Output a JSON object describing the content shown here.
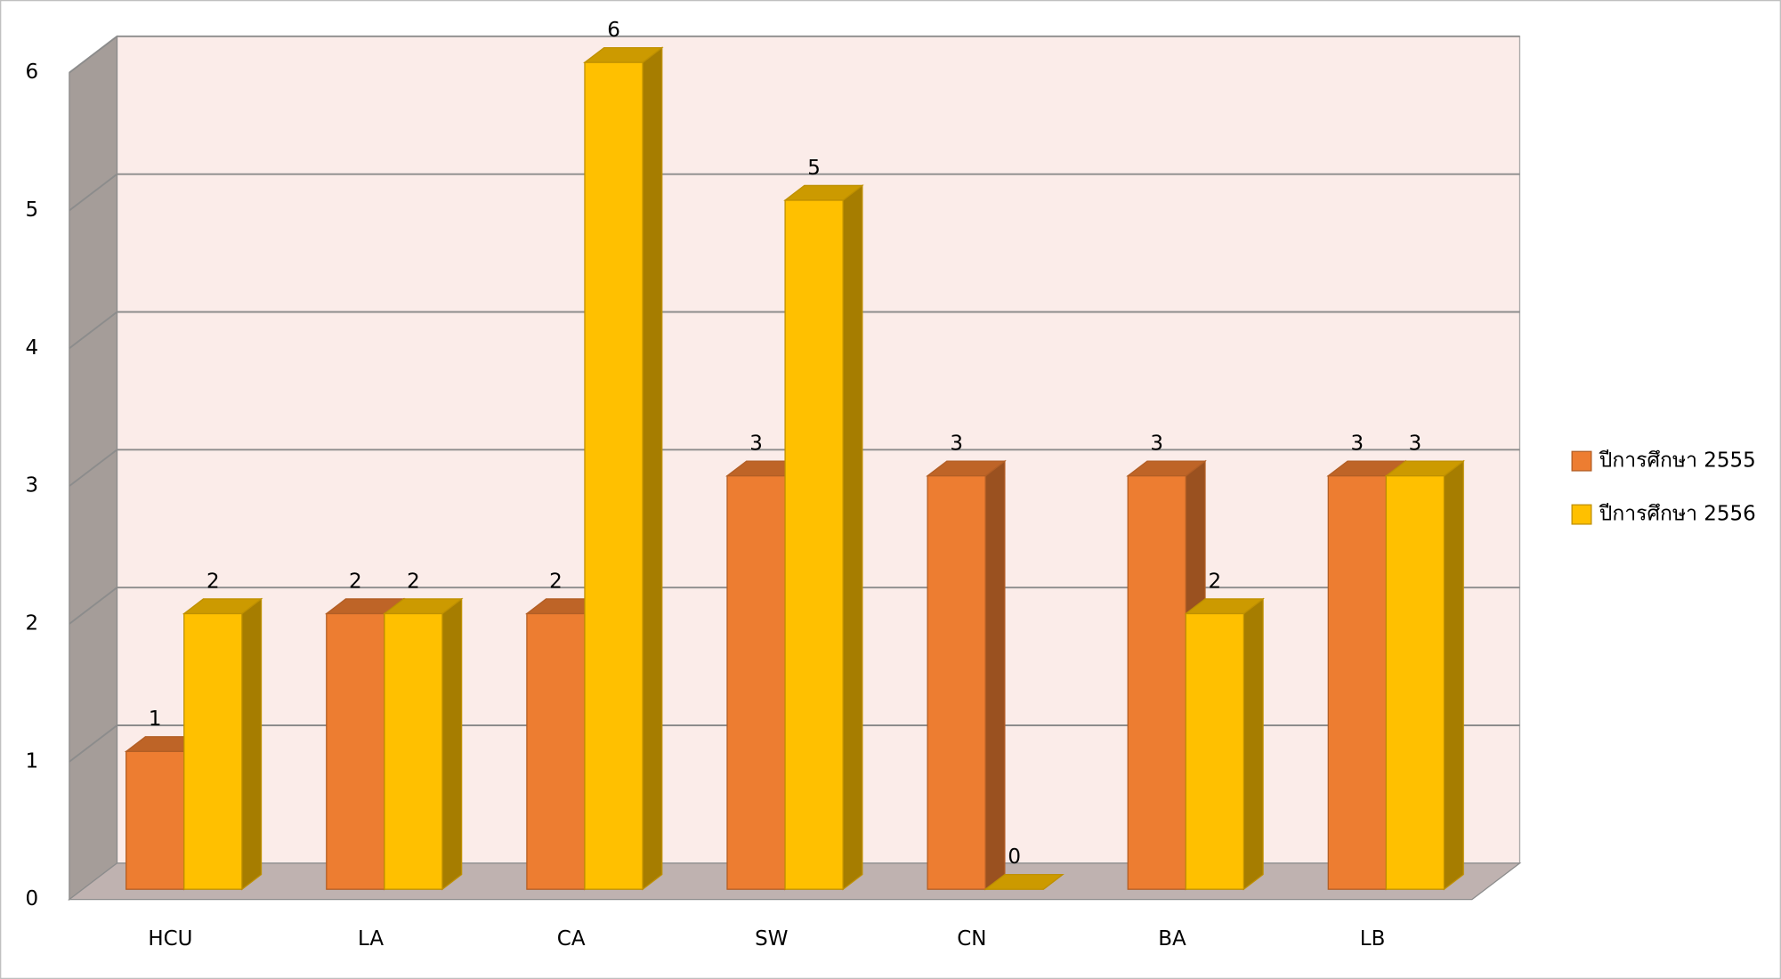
{
  "chart_data": {
    "type": "bar3d",
    "categories": [
      "HCU",
      "LA",
      "CA",
      "SW",
      "CN",
      "BA",
      "LB"
    ],
    "series": [
      {
        "name": "ปีการศึกษา 2555",
        "color": "#ed7d31",
        "values": [
          1,
          2,
          2,
          3,
          3,
          3,
          3
        ]
      },
      {
        "name": "ปีการศึกษา 2556",
        "color": "#ffc000",
        "values": [
          2,
          2,
          6,
          5,
          0,
          2,
          3
        ]
      }
    ],
    "ylim": [
      0,
      6
    ],
    "yticks": [
      0,
      1,
      2,
      3,
      4,
      5,
      6
    ],
    "grid": true,
    "legend": "right"
  }
}
